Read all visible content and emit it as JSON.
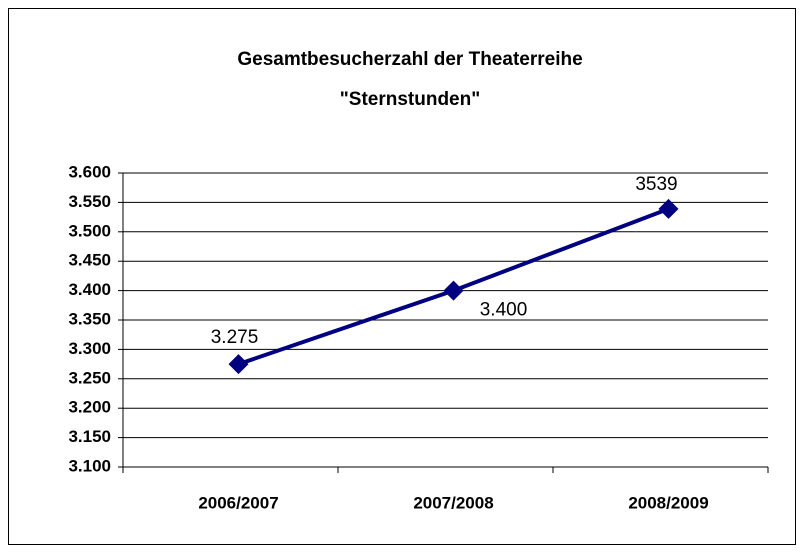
{
  "chart_data": {
    "type": "line",
    "title": [
      "Gesamtbesucherzahl der Theaterreihe",
      "\"Sternstunden\""
    ],
    "categories": [
      "2006/2007",
      "2007/2008",
      "2008/2009"
    ],
    "series": [
      {
        "name": "Gesamtbesucherzahl",
        "color": "#000080",
        "values": [
          3275,
          3400,
          3539
        ],
        "value_labels": [
          "3.275",
          "3.400",
          "3539"
        ]
      }
    ],
    "ylim": [
      3100,
      3600
    ],
    "yticks": [
      {
        "value": 3100,
        "label": "3.100"
      },
      {
        "value": 3150,
        "label": "3.150"
      },
      {
        "value": 3200,
        "label": "3.200"
      },
      {
        "value": 3250,
        "label": "3.250"
      },
      {
        "value": 3300,
        "label": "3.300"
      },
      {
        "value": 3350,
        "label": "3.350"
      },
      {
        "value": 3400,
        "label": "3.400"
      },
      {
        "value": 3450,
        "label": "3.450"
      },
      {
        "value": 3500,
        "label": "3.500"
      },
      {
        "value": 3550,
        "label": "3.550"
      },
      {
        "value": 3600,
        "label": "3.600"
      }
    ],
    "grid": true
  }
}
